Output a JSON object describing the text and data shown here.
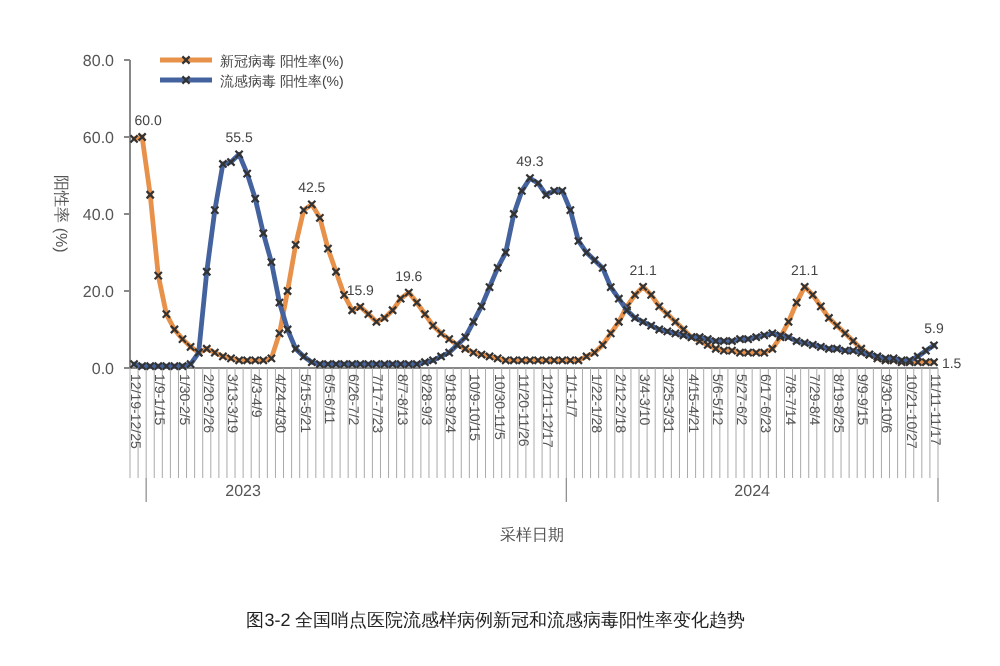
{
  "chart_data": {
    "type": "line",
    "categories": [
      "12/19-12/25",
      null,
      null,
      "1/9-1/15",
      null,
      null,
      "1/30-2/5",
      null,
      null,
      "2/20-2/26",
      null,
      null,
      "3/13-3/19",
      null,
      null,
      "4/3-4/9",
      null,
      null,
      "4/24-4/30",
      null,
      null,
      "5/15-5/21",
      null,
      null,
      "6/5-6/11",
      null,
      null,
      "6/26-7/2",
      null,
      null,
      "7/17-7/23",
      null,
      null,
      "8/7-8/13",
      null,
      null,
      "8/28-9/3",
      null,
      null,
      "9/18-9/24",
      null,
      null,
      "10/9-10/15",
      null,
      null,
      "10/30-11/5",
      null,
      null,
      "11/20-11/26",
      null,
      null,
      "12/11-12/17",
      null,
      null,
      "1/1-1/7",
      null,
      null,
      "1/22-1/28",
      null,
      null,
      "2/12-2/18",
      null,
      null,
      "3/4-3/10",
      null,
      null,
      "3/25-3/31",
      null,
      null,
      "4/15-4/21",
      null,
      null,
      "5/6-5/12",
      null,
      null,
      "5/27-6/2",
      null,
      null,
      "6/17-6/23",
      null,
      null,
      "7/8-7/14",
      null,
      null,
      "7/29-8/4",
      null,
      null,
      "8/19-8/25",
      null,
      null,
      "9/9-9/15",
      null,
      null,
      "9/30-10/6",
      null,
      null,
      "10/21-10/27",
      null,
      null,
      "11/11-11/17"
    ],
    "series": [
      {
        "name": "新冠病毒 阳性率(%)",
        "color": "#e8914b",
        "values": [
          59.5,
          60.0,
          45,
          24,
          14,
          10,
          7.5,
          5.5,
          4,
          5,
          4,
          3,
          2.5,
          2,
          2,
          2,
          2,
          2.5,
          9,
          20,
          32,
          41,
          42.5,
          39,
          31,
          25,
          19,
          15,
          15.9,
          14,
          12,
          13,
          15,
          18,
          19.6,
          17,
          14,
          11,
          9,
          7.5,
          6,
          5,
          4,
          3.5,
          3,
          2.5,
          2,
          2,
          2,
          2,
          2,
          2,
          2,
          2,
          2,
          2,
          3,
          4,
          6,
          9,
          12,
          16,
          19,
          21.1,
          19,
          16,
          14,
          12,
          10,
          8,
          7,
          6,
          5,
          4.5,
          4.5,
          4,
          4,
          4,
          4,
          5,
          8,
          12,
          17,
          21.1,
          19,
          16,
          13,
          11,
          9,
          7,
          5,
          3.5,
          2.5,
          2,
          2,
          1.5,
          1.5,
          1.5,
          1.5,
          1.5
        ],
        "value_labels": [
          null,
          "60.0",
          null,
          null,
          null,
          null,
          null,
          null,
          null,
          null,
          null,
          null,
          null,
          null,
          null,
          null,
          null,
          null,
          null,
          null,
          null,
          null,
          "42.5",
          null,
          null,
          null,
          null,
          null,
          "15.9",
          null,
          null,
          null,
          null,
          null,
          "19.6",
          null,
          null,
          null,
          null,
          null,
          null,
          null,
          null,
          null,
          null,
          null,
          null,
          null,
          null,
          null,
          null,
          null,
          null,
          null,
          null,
          null,
          null,
          null,
          null,
          null,
          null,
          null,
          null,
          "21.1",
          null,
          null,
          null,
          null,
          null,
          null,
          null,
          null,
          null,
          null,
          null,
          null,
          null,
          null,
          null,
          null,
          null,
          null,
          null,
          "21.1",
          null,
          null,
          null,
          null,
          null,
          null,
          null,
          null,
          null,
          null,
          null,
          null,
          null,
          null,
          null,
          "1.5"
        ]
      },
      {
        "name": "流感病毒 阳性率(%)",
        "color": "#44639e",
        "values": [
          1,
          0.5,
          0.5,
          0.5,
          0.5,
          0.5,
          0.5,
          1,
          4,
          25,
          41,
          53,
          53.5,
          55.5,
          50.5,
          44,
          35,
          27.5,
          17,
          10,
          5,
          3,
          1.5,
          1,
          1,
          1,
          1,
          1,
          1,
          1,
          1,
          1,
          1,
          1,
          1,
          1,
          1.5,
          2,
          3,
          4,
          6,
          8,
          12,
          16,
          21,
          26,
          30,
          40,
          46,
          49.3,
          48,
          45,
          46,
          46,
          41,
          33,
          30,
          28,
          26,
          21,
          18,
          15,
          13,
          12,
          11,
          10,
          9.5,
          9,
          8.5,
          8,
          8,
          7.5,
          7,
          7,
          7,
          7.5,
          7.5,
          8,
          8.5,
          9,
          8.5,
          8,
          7,
          6.5,
          6,
          5.5,
          5,
          5,
          4.5,
          4.5,
          4,
          3.5,
          3,
          2.5,
          2.5,
          2,
          2,
          3,
          4.5,
          5.9
        ],
        "value_labels": [
          null,
          null,
          null,
          null,
          null,
          null,
          null,
          null,
          null,
          null,
          null,
          null,
          null,
          "55.5",
          null,
          null,
          null,
          null,
          null,
          null,
          null,
          null,
          null,
          null,
          null,
          null,
          null,
          null,
          null,
          null,
          null,
          null,
          null,
          null,
          null,
          null,
          null,
          null,
          null,
          null,
          null,
          null,
          null,
          null,
          null,
          null,
          null,
          null,
          null,
          "49.3",
          null,
          null,
          null,
          null,
          null,
          null,
          null,
          null,
          null,
          null,
          null,
          null,
          null,
          null,
          null,
          null,
          null,
          null,
          null,
          null,
          null,
          null,
          null,
          null,
          null,
          null,
          null,
          null,
          null,
          null,
          null,
          null,
          null,
          null,
          null,
          null,
          null,
          null,
          null,
          null,
          null,
          null,
          null,
          null,
          null,
          null,
          null,
          null,
          null,
          "5.9"
        ]
      }
    ],
    "ylim": [
      0,
      80
    ],
    "yticks": [
      {
        "value": 0,
        "label": "0.0"
      },
      {
        "value": 20,
        "label": "20.0"
      },
      {
        "value": 40,
        "label": "40.0"
      },
      {
        "value": 60,
        "label": "60.0"
      },
      {
        "value": 80,
        "label": "80.0"
      }
    ],
    "ylabel": "阳性率 (%)",
    "xlabel": "采样日期",
    "annotations": [
      "2023",
      "2024",
      "图3-2 全国哨点医院流感样病例新冠和流感病毒阳性率变化趋势"
    ],
    "marker": "cross",
    "legend": "top left",
    "grid": false
  }
}
